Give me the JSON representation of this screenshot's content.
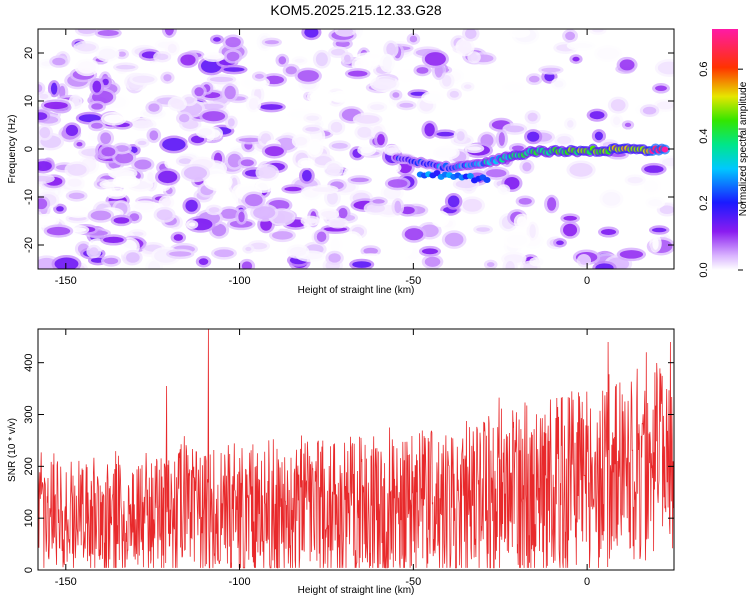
{
  "title": "KOM5.2025.215.12.33.G28",
  "colors": {
    "background": "#ffffff",
    "snr_line": "#e8292b",
    "axis": "#000000"
  },
  "chart_data": [
    {
      "type": "heatmap",
      "xlabel": "Height of straight line (km)",
      "ylabel": "Frequency (Hz)",
      "xlim": [
        -158,
        25
      ],
      "ylim": [
        -25,
        25
      ],
      "x_ticks": [
        -150,
        -100,
        -50,
        0
      ],
      "x_tick_labels": [
        "-150",
        "-100",
        "-50",
        "0"
      ],
      "y_ticks": [
        -20,
        -10,
        0,
        10,
        20
      ],
      "y_tick_labels": [
        "-20",
        "-10",
        "0",
        "10",
        "20"
      ],
      "colorbar": {
        "label": "Normalized spectral amplitude",
        "range": [
          0.0,
          0.72
        ],
        "ticks": [
          0.0,
          0.2,
          0.4,
          0.6
        ],
        "tick_labels": [
          "0.0",
          "0.2",
          "0.4",
          "0.6"
        ],
        "colormap": "rainbow (white-purple-blue-cyan-green-yellow-red-magenta)"
      },
      "features": [
        {
          "description": "strong narrowband trace",
          "x_range": [
            -55,
            23
          ],
          "frequency_hz": [
            -4,
            0
          ],
          "peak_amplitude": 0.72
        },
        {
          "description": "diffuse noise background",
          "x_range": [
            -158,
            25
          ],
          "frequency_hz": [
            -25,
            25
          ],
          "amplitude": [
            0.0,
            0.15
          ]
        }
      ]
    },
    {
      "type": "line",
      "xlabel": "Height of straight line (km)",
      "ylabel": "SNR (10 * v/v)",
      "xlim": [
        -158,
        25
      ],
      "ylim": [
        0,
        465
      ],
      "x_ticks": [
        -150,
        -100,
        -50,
        0
      ],
      "x_tick_labels": [
        "-150",
        "-100",
        "-50",
        "0"
      ],
      "y_ticks": [
        0,
        100,
        200,
        300,
        400
      ],
      "y_tick_labels": [
        "0",
        "100",
        "200",
        "300",
        "400"
      ],
      "series": [
        {
          "color": "#e8292b",
          "trend": {
            "x": [
              -158,
              -100,
              -50,
              0,
              25
            ],
            "mean": [
              105,
              110,
              120,
              160,
              210
            ],
            "upper_envelope": [
              230,
              270,
              290,
              380,
              420
            ]
          },
          "peaks": [
            {
              "x": -109,
              "y": 465
            },
            {
              "x": -121,
              "y": 355
            },
            {
              "x": 6,
              "y": 440
            },
            {
              "x": 24,
              "y": 440
            },
            {
              "x": 17,
              "y": 420
            }
          ]
        }
      ]
    }
  ]
}
